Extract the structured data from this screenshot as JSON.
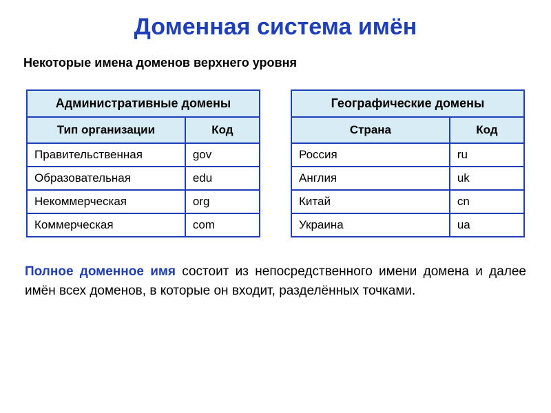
{
  "colors": {
    "accent": "#1f3fb8",
    "tableHeaderBg": "#d7ecf5",
    "tableBorder": "#1f3fb8",
    "text": "#000000",
    "background": "#ffffff"
  },
  "typography": {
    "title_fontsize": 34,
    "subtitle_fontsize": 18,
    "table_fontsize": 17,
    "footer_fontsize": 19,
    "font_family": "Arial"
  },
  "title": "Доменная система имён",
  "subtitle": "Некоторые имена доменов верхнего уровня",
  "tables": {
    "admin": {
      "header": "Административные домены",
      "columns": [
        "Тип организации",
        "Код"
      ],
      "col_widths_pct": [
        68,
        32
      ],
      "rows": [
        [
          "Правительственная",
          "gov"
        ],
        [
          "Образовательная",
          "edu"
        ],
        [
          "Некоммерческая",
          "org"
        ],
        [
          "Коммерческая",
          "com"
        ]
      ]
    },
    "geo": {
      "header": "Географические домены",
      "columns": [
        "Страна",
        "Код"
      ],
      "col_widths_pct": [
        68,
        32
      ],
      "rows": [
        [
          "Россия",
          "ru"
        ],
        [
          "Англия",
          "uk"
        ],
        [
          "Китай",
          "cn"
        ],
        [
          "Украина",
          "ua"
        ]
      ]
    }
  },
  "footer": {
    "emphasis": "Полное доменное имя",
    "rest": " состоит из непосредственного имени домена и далее имён всех доменов, в которые он входит, разделённых точками."
  }
}
